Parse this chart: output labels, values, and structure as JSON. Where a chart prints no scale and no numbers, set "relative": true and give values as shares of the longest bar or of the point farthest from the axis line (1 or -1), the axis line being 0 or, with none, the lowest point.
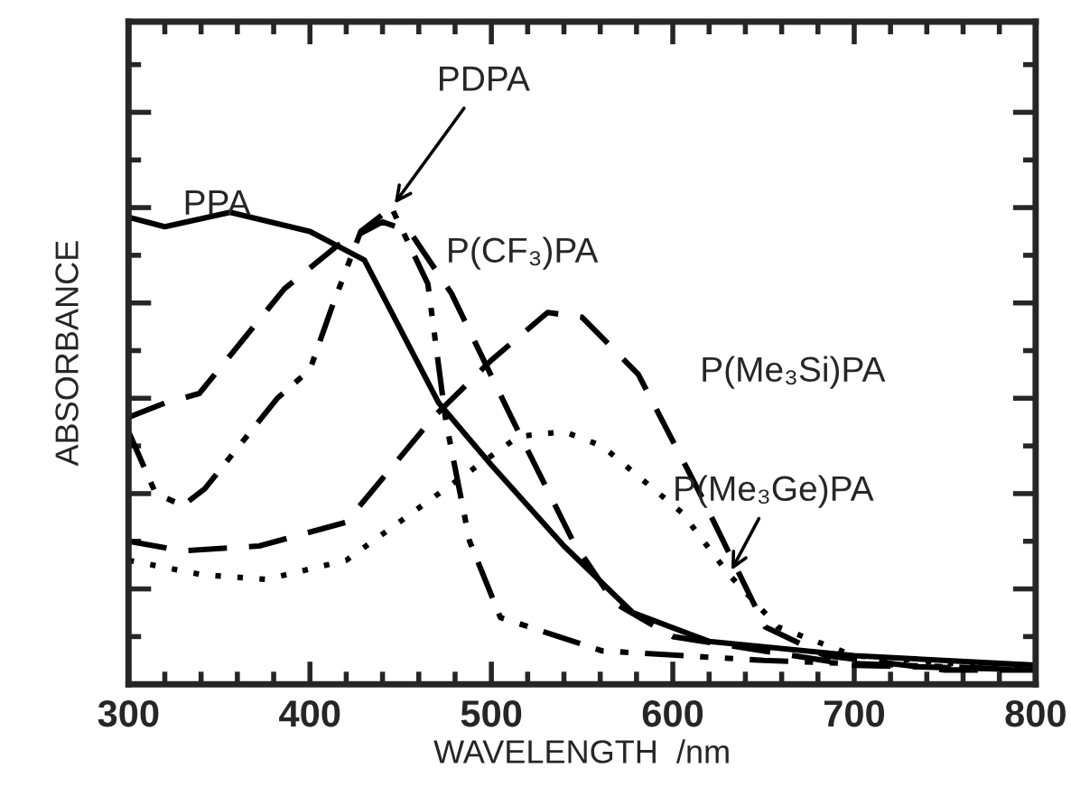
{
  "chart_data": {
    "type": "line",
    "xlabel": "WAVELENGTH  /nm",
    "ylabel": "ABSORBANCE",
    "relative": true,
    "xlim": [
      300,
      800
    ],
    "xticks": [
      300,
      400,
      500,
      600,
      700,
      800
    ],
    "tick_labels": "x",
    "grid": false,
    "legend": false,
    "marker": "none",
    "series": [
      {
        "name": "PPA",
        "color": "#000000",
        "line_style": "solid",
        "x": [
          300,
          320,
          356,
          400,
          430,
          471,
          500,
          540,
          578,
          620,
          700,
          800
        ],
        "values": [
          0.98,
          0.96,
          0.99,
          0.95,
          0.89,
          0.59,
          0.46,
          0.29,
          0.15,
          0.09,
          0.06,
          0.04
        ]
      },
      {
        "name": "PDPA",
        "color": "#000000",
        "line_style": "dashdot",
        "x": [
          300,
          315,
          330,
          342,
          382,
          400,
          412,
          428,
          445,
          465,
          475,
          488,
          505,
          561,
          650,
          800
        ],
        "values": [
          0.53,
          0.4,
          0.375,
          0.41,
          0.6,
          0.66,
          0.79,
          0.95,
          1.0,
          0.84,
          0.55,
          0.3,
          0.14,
          0.07,
          0.05,
          0.03
        ]
      },
      {
        "name": "P(CF₃)PA",
        "color": "#000000",
        "line_style": "dashed",
        "x": [
          300,
          320,
          339,
          386,
          415,
          440,
          455,
          478,
          511,
          545,
          568,
          600,
          700,
          800
        ],
        "values": [
          0.56,
          0.59,
          0.61,
          0.83,
          0.92,
          0.97,
          0.95,
          0.82,
          0.56,
          0.3,
          0.17,
          0.1,
          0.04,
          0.03
        ]
      },
      {
        "name": "P(Me₃Si)PA",
        "color": "#000000",
        "line_style": "dashed",
        "x": [
          300,
          330,
          372,
          420,
          468,
          500,
          531,
          550,
          581,
          615,
          651,
          684,
          750,
          800
        ],
        "values": [
          0.3,
          0.28,
          0.29,
          0.34,
          0.56,
          0.68,
          0.78,
          0.77,
          0.65,
          0.4,
          0.12,
          0.06,
          0.03,
          0.03
        ]
      },
      {
        "name": "P(Me₃Ge)PA",
        "color": "#000000",
        "line_style": "dotted",
        "x": [
          300,
          340,
          376,
          420,
          471,
          515,
          540,
          561,
          605,
          631,
          658,
          700,
          800
        ],
        "values": [
          0.26,
          0.23,
          0.22,
          0.26,
          0.4,
          0.52,
          0.53,
          0.5,
          0.36,
          0.23,
          0.12,
          0.06,
          0.03
        ]
      }
    ]
  }
}
